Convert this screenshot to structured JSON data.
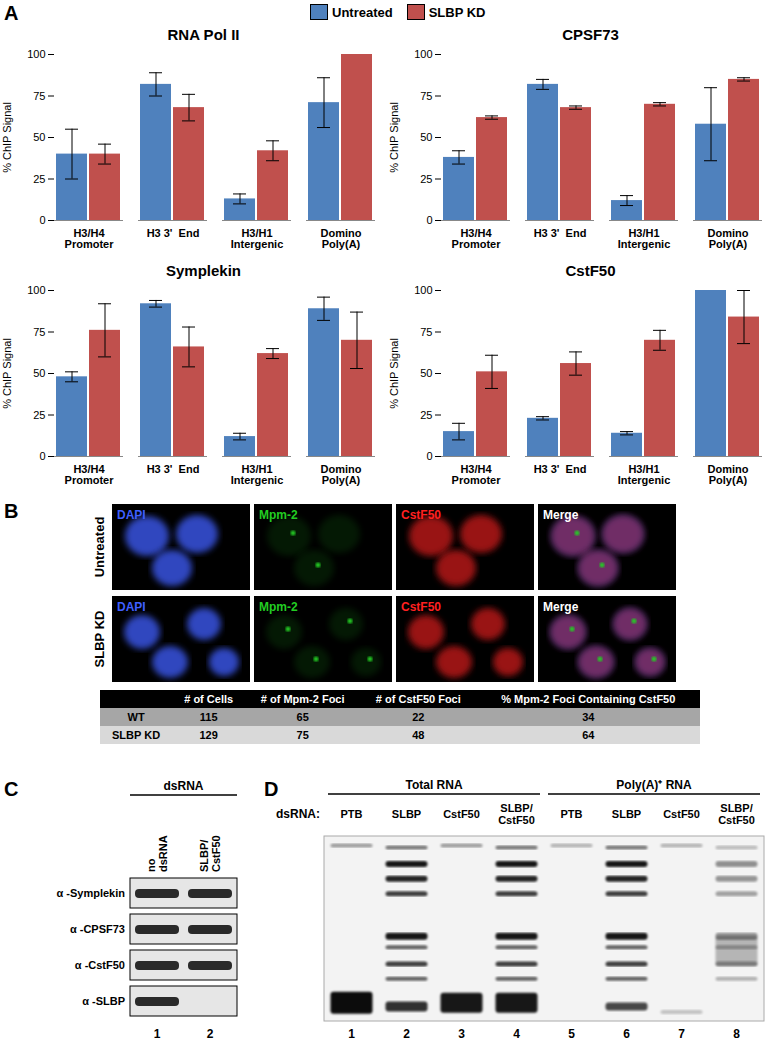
{
  "chart_data": [
    {
      "type": "bar",
      "title": "RNA Pol II",
      "ylabel": "% ChIP Signal",
      "categories": [
        "H3/H4 Promoter",
        "H3 3'  End",
        "H3/H1 Intergenic",
        "Domino Poly(A)"
      ],
      "ylim": [
        0,
        100
      ],
      "yticks": [
        0,
        25,
        50,
        75,
        100
      ],
      "grid": false,
      "legend": "top",
      "series": [
        {
          "name": "Untreated",
          "color": "#4f81bd",
          "values": [
            40,
            82,
            13,
            71
          ],
          "errors": [
            15,
            7,
            3,
            15
          ]
        },
        {
          "name": "SLBP KD",
          "color": "#c0504d",
          "values": [
            40,
            68,
            42,
            100
          ],
          "errors": [
            6,
            8,
            6,
            null
          ]
        }
      ]
    },
    {
      "type": "bar",
      "title": "CPSF73",
      "ylabel": "% ChIP Signal",
      "categories": [
        "H3/H4 Promoter",
        "H3 3'  End",
        "H3/H1 Intergenic",
        "Domino Poly(A)"
      ],
      "ylim": [
        0,
        100
      ],
      "yticks": [
        0,
        25,
        50,
        75,
        100
      ],
      "grid": false,
      "series": [
        {
          "name": "Untreated",
          "color": "#4f81bd",
          "values": [
            38,
            82,
            12,
            58
          ],
          "errors": [
            4,
            3,
            3,
            22
          ]
        },
        {
          "name": "SLBP KD",
          "color": "#c0504d",
          "values": [
            62,
            68,
            70,
            85
          ],
          "errors": [
            1,
            1,
            1,
            1
          ]
        }
      ]
    },
    {
      "type": "bar",
      "title": "Symplekin",
      "ylabel": "% ChIP Signal",
      "categories": [
        "H3/H4 Promoter",
        "H3 3'  End",
        "H3/H1 Intergenic",
        "Domino Poly(A)"
      ],
      "ylim": [
        0,
        100
      ],
      "yticks": [
        0,
        25,
        50,
        75,
        100
      ],
      "grid": false,
      "series": [
        {
          "name": "Untreated",
          "color": "#4f81bd",
          "values": [
            48,
            92,
            12,
            89
          ],
          "errors": [
            3,
            2,
            2,
            7
          ]
        },
        {
          "name": "SLBP KD",
          "color": "#c0504d",
          "values": [
            76,
            66,
            62,
            70
          ],
          "errors": [
            16,
            12,
            3,
            17
          ]
        }
      ]
    },
    {
      "type": "bar",
      "title": "CstF50",
      "ylabel": "% ChIP Signal",
      "categories": [
        "H3/H4 Promoter",
        "H3 3'  End",
        "H3/H1 Intergenic",
        "Domino Poly(A)"
      ],
      "ylim": [
        0,
        100
      ],
      "yticks": [
        0,
        25,
        50,
        75,
        100
      ],
      "grid": false,
      "series": [
        {
          "name": "Untreated",
          "color": "#4f81bd",
          "values": [
            15,
            23,
            14,
            100
          ],
          "errors": [
            5,
            1,
            1,
            null
          ]
        },
        {
          "name": "SLBP KD",
          "color": "#c0504d",
          "values": [
            51,
            56,
            70,
            84
          ],
          "errors": [
            10,
            7,
            6,
            16
          ]
        }
      ]
    }
  ],
  "panels": {
    "A": {
      "label": "A"
    },
    "B": {
      "label": "B",
      "rows": [
        "Untreated",
        "SLBP KD"
      ],
      "channels": [
        {
          "label": "DAPI",
          "color": "#3f5fff"
        },
        {
          "label": "Mpm-2",
          "color": "#22cc22"
        },
        {
          "label": "CstF50",
          "color": "#ff2020"
        },
        {
          "label": "Merge",
          "color": "#ffffff"
        }
      ],
      "table": {
        "header": [
          null,
          "# of Cells",
          "# of Mpm-2 Foci",
          "# of CstF50 Foci",
          "% Mpm-2 Foci Containing CstF50"
        ],
        "rows": [
          [
            "WT",
            115,
            65,
            22,
            34
          ],
          [
            "SLBP KD",
            129,
            75,
            48,
            64
          ]
        ]
      }
    },
    "C": {
      "label": "C",
      "header": "dsRNA",
      "lanes": [
        "no dsRNA",
        "SLBP/ CstF50"
      ],
      "lane_numbers": [
        1,
        2
      ],
      "rows": [
        {
          "label": "α -Symplekin",
          "present": [
            true,
            true
          ]
        },
        {
          "label": "α -CPSF73",
          "present": [
            true,
            true
          ]
        },
        {
          "label": "α -CstF50",
          "present": [
            true,
            true
          ]
        },
        {
          "label": "α -SLBP",
          "present": [
            true,
            false
          ]
        }
      ]
    },
    "D": {
      "label": "D",
      "row_label": "dsRNA:",
      "groups": [
        {
          "label": "Total RNA",
          "lanes": [
            1,
            2,
            3,
            4
          ]
        },
        {
          "label": "Poly(A)⁺ RNA",
          "lanes": [
            5,
            6,
            7,
            8
          ]
        }
      ],
      "lanes": [
        "PTB",
        "SLBP",
        "CstF50",
        "SLBP/ CstF50",
        "PTB",
        "SLBP",
        "CstF50",
        "SLBP/ CstF50"
      ],
      "lane_numbers": [
        1,
        2,
        3,
        4,
        5,
        6,
        7,
        8
      ]
    }
  }
}
